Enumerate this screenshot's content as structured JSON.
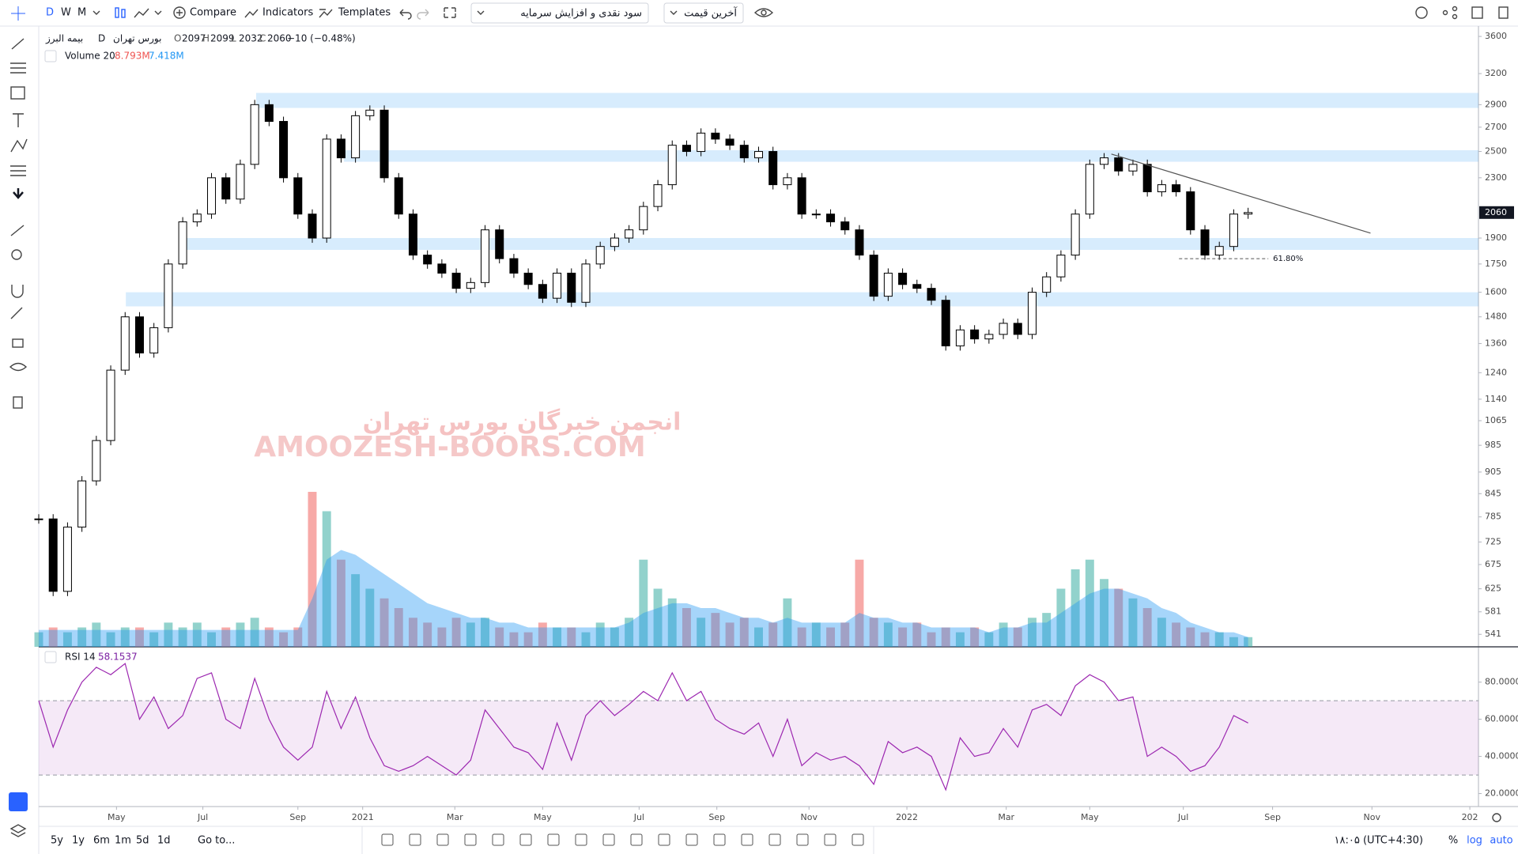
{
  "toolbar": {
    "intervals": [
      "D",
      "W",
      "M"
    ],
    "compare": "Compare",
    "indicators": "Indicators",
    "templates": "Templates",
    "dividends": "سود نقدی و افزایش سرمایه",
    "price_source": "آخرین قیمت"
  },
  "legend": {
    "symbol": "بیمه البرز",
    "interval": "D",
    "exchange": "بورس تهران",
    "ohlc": [
      {
        "label": "O",
        "value": 2097
      },
      {
        "label": "H",
        "value": 2099
      },
      {
        "label": "L",
        "value": 2032
      },
      {
        "label": "C",
        "value": 2060
      }
    ],
    "change": "−10 (−0.48%)"
  },
  "watermark": {
    "fa": "انجمن خبرگان بورس تهران",
    "en": "AMOOZESH-BOORS.COM"
  },
  "bottom": {
    "ranges": [
      "5y",
      "1y",
      "6m",
      "1m",
      "5d",
      "1d"
    ],
    "goto": "Go to...",
    "clock": "۱۸:۰۵ (UTC+4:30)",
    "percent": "%",
    "log": "log",
    "auto": "auto"
  },
  "chart_data": {
    "type": "candlestick",
    "log_scale": true,
    "grid": false,
    "x": [
      0,
      1,
      2,
      3,
      4,
      5,
      6,
      7,
      8,
      9,
      10,
      11,
      12,
      13,
      14,
      15,
      16,
      17,
      18,
      19,
      20,
      21,
      22,
      23,
      24,
      25,
      26,
      27,
      28,
      29,
      30,
      31,
      32,
      33,
      34,
      35,
      36,
      37,
      38,
      39,
      40,
      41,
      42,
      43,
      44,
      45,
      46,
      47,
      48,
      49,
      50,
      51,
      52,
      53,
      54,
      55,
      56,
      57,
      58,
      59,
      60,
      61,
      62,
      63,
      64,
      65,
      66,
      67,
      68,
      69,
      70,
      71,
      72,
      73,
      74,
      75,
      76,
      77,
      78,
      79,
      80,
      81,
      82,
      83,
      84
    ],
    "price": {
      "values": [
        780,
        620,
        760,
        880,
        1000,
        1250,
        1480,
        1320,
        1430,
        1750,
        2000,
        2050,
        2300,
        2150,
        2400,
        2900,
        2750,
        2300,
        2050,
        1900,
        2600,
        2450,
        2800,
        2850,
        2300,
        2050,
        1800,
        1750,
        1700,
        1620,
        1650,
        1950,
        1780,
        1700,
        1640,
        1570,
        1700,
        1550,
        1750,
        1850,
        1900,
        1950,
        2100,
        2250,
        2550,
        2500,
        2650,
        2600,
        2550,
        2450,
        2500,
        2250,
        2300,
        2050,
        2050,
        2000,
        1950,
        1800,
        1580,
        1700,
        1640,
        1620,
        1560,
        1350,
        1420,
        1380,
        1400,
        1450,
        1400,
        1600,
        1680,
        1800,
        2050,
        2400,
        2450,
        2350,
        2400,
        2200,
        2250,
        2200,
        1950,
        1800,
        1850,
        2050,
        2060
      ],
      "up_color": "#ffffff",
      "down_color": "#000000"
    },
    "volume": {
      "label": "Volume 20",
      "legend_values": [
        "8.793M",
        "7.418M"
      ],
      "vlim": [
        0,
        40
      ],
      "up_color": "rgba(38,166,154,0.5)",
      "down_color": "rgba(239,83,80,0.5)",
      "ma_color": "rgba(33,150,243,0.4)",
      "values": [
        3,
        4,
        3,
        4,
        5,
        3,
        4,
        4,
        3,
        5,
        4,
        5,
        3,
        4,
        5,
        6,
        4,
        3,
        4,
        32,
        28,
        18,
        15,
        12,
        10,
        8,
        6,
        5,
        4,
        6,
        5,
        6,
        4,
        3,
        3,
        5,
        4,
        4,
        3,
        5,
        4,
        6,
        18,
        12,
        10,
        8,
        6,
        7,
        5,
        6,
        4,
        5,
        10,
        4,
        5,
        4,
        5,
        18,
        6,
        5,
        4,
        5,
        3,
        4,
        3,
        4,
        3,
        5,
        4,
        6,
        7,
        12,
        16,
        18,
        14,
        12,
        10,
        8,
        6,
        5,
        4,
        3,
        3,
        2,
        2
      ],
      "ma": [
        3.5,
        3.5,
        3.5,
        3.5,
        3.5,
        3.5,
        3.5,
        3.5,
        3.5,
        3.5,
        3.5,
        3.5,
        3.5,
        3.5,
        3.5,
        3.5,
        3.5,
        3.5,
        3.5,
        10,
        18,
        20,
        19,
        17,
        15,
        13,
        11,
        9,
        8,
        7,
        6,
        6,
        5,
        5,
        4,
        4,
        4,
        4,
        4,
        4,
        4,
        5,
        7,
        8,
        9,
        9,
        8,
        8,
        7,
        6,
        6,
        5,
        6,
        5,
        5,
        5,
        5,
        7,
        6,
        6,
        5,
        5,
        4,
        4,
        4,
        4,
        3,
        4,
        4,
        5,
        5,
        7,
        9,
        11,
        12,
        12,
        11,
        10,
        8,
        7,
        5,
        4,
        3,
        3,
        2
      ]
    },
    "xlim": [
      0,
      100
    ],
    "xticks": [
      {
        "value": 5.4,
        "label": "May"
      },
      {
        "value": 11.4,
        "label": "Jul"
      },
      {
        "value": 18.0,
        "label": "Sep"
      },
      {
        "value": 22.5,
        "label": "2021"
      },
      {
        "value": 28.9,
        "label": "Mar"
      },
      {
        "value": 35.0,
        "label": "May"
      },
      {
        "value": 41.7,
        "label": "Jul"
      },
      {
        "value": 47.1,
        "label": "Sep"
      },
      {
        "value": 53.5,
        "label": "Nov"
      },
      {
        "value": 60.3,
        "label": "2022"
      },
      {
        "value": 67.2,
        "label": "Mar"
      },
      {
        "value": 73.0,
        "label": "May"
      },
      {
        "value": 79.5,
        "label": "Jul"
      },
      {
        "value": 85.7,
        "label": "Sep"
      },
      {
        "value": 92.6,
        "label": "Nov"
      },
      {
        "value": 99.4,
        "label": "202"
      }
    ],
    "ylim": [
      520,
      3720
    ],
    "yticks": [
      541,
      581,
      625,
      675,
      725,
      785,
      845,
      905,
      985,
      1065,
      1140,
      1240,
      1360,
      1480,
      1600,
      1750,
      1900,
      2300,
      2500,
      2700,
      2900,
      3200,
      3600
    ],
    "last_price": 2060,
    "zone_color": "rgba(33,150,243,0.18)",
    "zones": [
      {
        "x": 15.1,
        "low": 2870,
        "high": 3010
      },
      {
        "x": 21.2,
        "low": 2420,
        "high": 2510
      },
      {
        "x": 10.1,
        "low": 1830,
        "high": 1900
      },
      {
        "x": 6.05,
        "low": 1530,
        "high": 1600
      }
    ],
    "trendline": {
      "x": [
        74.5,
        92.5
      ],
      "values": [
        2480,
        1930
      ]
    },
    "fib": {
      "label": "61.80%",
      "value": 1780,
      "x": [
        79.2,
        85.4
      ]
    },
    "rsi": {
      "label": "RSI 14",
      "last": 58.1537,
      "color": "#9c27b0",
      "ylim": [
        13,
        99
      ],
      "bands": [
        30,
        70
      ],
      "yticks": [
        {
          "value": 20,
          "label": "20.0000"
        },
        {
          "value": 40,
          "label": "40.0000"
        },
        {
          "value": 60,
          "label": "60.0000"
        },
        {
          "value": 80,
          "label": "80.0000"
        }
      ],
      "values": [
        70,
        45,
        65,
        80,
        88,
        84,
        90,
        60,
        72,
        55,
        62,
        82,
        85,
        60,
        55,
        82,
        60,
        45,
        38,
        45,
        75,
        55,
        72,
        50,
        35,
        32,
        35,
        40,
        35,
        30,
        38,
        65,
        55,
        45,
        42,
        33,
        58,
        38,
        62,
        70,
        62,
        68,
        75,
        70,
        85,
        70,
        75,
        60,
        55,
        52,
        58,
        40,
        60,
        35,
        42,
        38,
        40,
        35,
        25,
        48,
        42,
        45,
        40,
        22,
        50,
        40,
        42,
        55,
        45,
        65,
        68,
        62,
        78,
        84,
        80,
        70,
        72,
        40,
        45,
        40,
        32,
        35,
        45,
        62,
        58
      ]
    }
  }
}
